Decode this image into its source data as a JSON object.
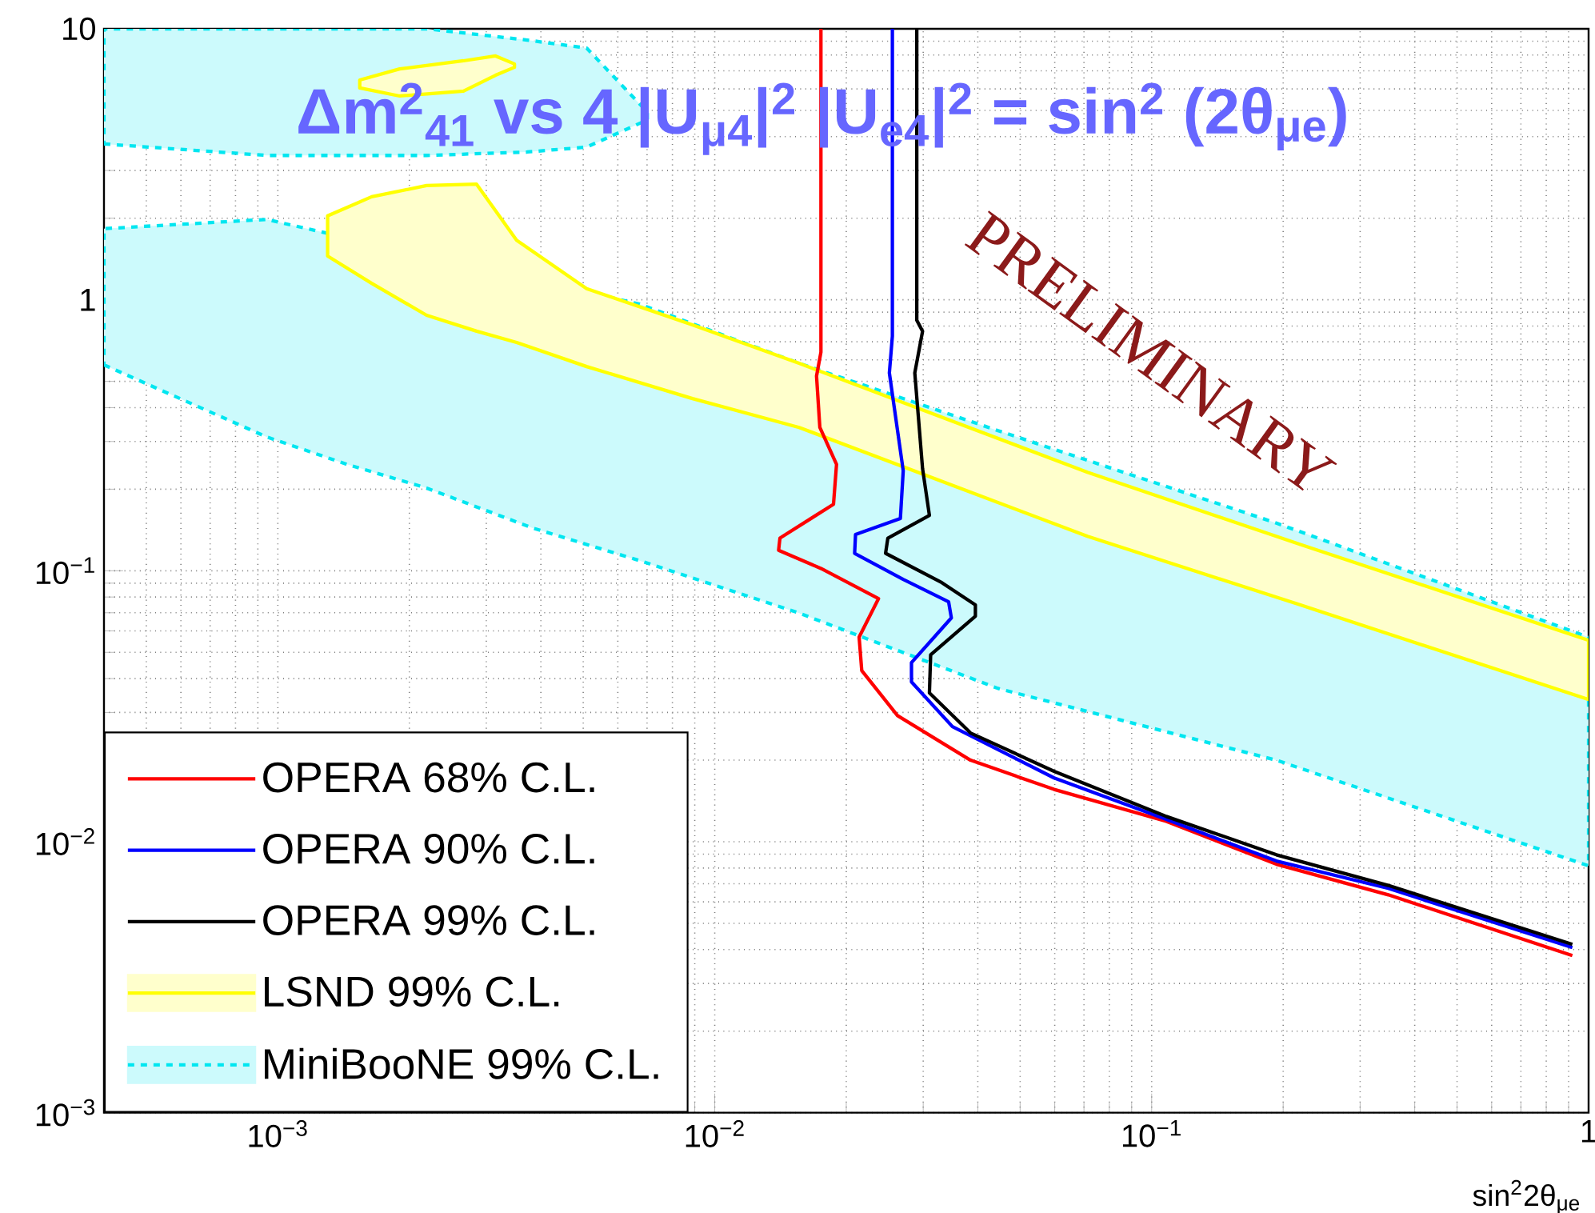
{
  "chart_data": {
    "type": "line",
    "title": "Δm$^{2}$$_{41}$ vs  4 |U$_{μ4}$|$^{2}$ |U$_{e4}$|$^{2}$ = sin$^{2}$ (2θ$_{μe}$)",
    "xlabel": "sin$^{2}$2θ$_{μe}$",
    "annotations": [
      "PRELIMINARY"
    ],
    "log": "xy",
    "grid": true,
    "legend": "bottom left",
    "xlim": [
      0.0004,
      1
    ],
    "ylim": [
      0.001,
      10
    ],
    "xticks": [
      {
        "value": 0.001,
        "label": "10$^{−3}$"
      },
      {
        "value": 0.01,
        "label": "10$^{−2}$"
      },
      {
        "value": 0.1,
        "label": "10$^{−1}$"
      },
      1
    ],
    "yticks": [
      {
        "value": 0.001,
        "label": "10$^{−3}$"
      },
      {
        "value": 0.01,
        "label": "10$^{−2}$"
      },
      {
        "value": 0.1,
        "label": "10$^{−1}$"
      },
      1,
      10
    ],
    "series": [
      {
        "name": "OPERA 68% C.L.",
        "color": "#ff0000",
        "x": [
          0.0175,
          0.0175,
          0.0171,
          0.0174,
          0.019,
          0.0187,
          0.0141,
          0.014,
          0.0175,
          0.0237,
          0.0214,
          0.0217,
          0.0262,
          0.0385,
          0.0598,
          0.108,
          0.193,
          0.348,
          0.918
        ],
        "values": [
          10,
          0.641,
          0.523,
          0.338,
          0.247,
          0.176,
          0.132,
          0.119,
          0.102,
          0.0789,
          0.0569,
          0.0428,
          0.0292,
          0.02,
          0.0156,
          0.0119,
          0.00826,
          0.00637,
          0.0038
        ]
      },
      {
        "name": "OPERA 90% C.L.",
        "color": "#0000ff",
        "x": [
          0.0255,
          0.0255,
          0.0251,
          0.027,
          0.0266,
          0.021,
          0.0209,
          0.027,
          0.0343,
          0.0348,
          0.0282,
          0.0282,
          0.035,
          0.0598,
          0.108,
          0.193,
          0.348,
          0.918
        ],
        "values": [
          10,
          0.734,
          0.537,
          0.234,
          0.156,
          0.136,
          0.116,
          0.0929,
          0.0768,
          0.067,
          0.0458,
          0.0389,
          0.0266,
          0.0172,
          0.0121,
          0.00849,
          0.00673,
          0.00407
        ]
      },
      {
        "name": "OPERA 99% C.L.",
        "color": "#000000",
        "x": [
          0.029,
          0.029,
          0.0299,
          0.0287,
          0.0299,
          0.031,
          0.0249,
          0.0246,
          0.0331,
          0.0395,
          0.0395,
          0.0312,
          0.031,
          0.0385,
          0.0598,
          0.108,
          0.193,
          0.348,
          0.918
        ],
        "values": [
          10,
          0.841,
          0.766,
          0.537,
          0.238,
          0.16,
          0.132,
          0.116,
          0.0904,
          0.0748,
          0.068,
          0.049,
          0.0354,
          0.0252,
          0.0182,
          0.0124,
          0.00895,
          0.0069,
          0.00418
        ]
      },
      {
        "name": "LSND 99% C.L.",
        "type": "area",
        "color": "#ffffcc",
        "x": [
          0.0013,
          0.00164,
          0.00219,
          0.00285,
          0.00352,
          0.00509,
          0.00889,
          0.0156,
          0.0713,
          0.219,
          1,
          1,
          0.219,
          0.0713,
          0.0156,
          0.00889,
          0.00509,
          0.00352,
          0.00285,
          0.00219,
          0.00164,
          0.0013
        ],
        "values": [
          1.45,
          1.15,
          0.877,
          0.766,
          0.696,
          0.567,
          0.432,
          0.338,
          0.134,
          0.0748,
          0.0335,
          0.0554,
          0.125,
          0.231,
          0.583,
          0.808,
          1.1,
          1.66,
          2.67,
          2.64,
          2.4,
          2.04
        ]
      },
      {
        "type": "area",
        "color": "#ffffcc",
        "x": [
          0.00154,
          0.0019,
          0.00266,
          0.00315,
          0.00348,
          0.00348,
          0.00315,
          0.00266,
          0.0019,
          0.00154
        ],
        "values": [
          6.05,
          5.65,
          5.89,
          6.74,
          7.21,
          7.42,
          7.94,
          7.62,
          7.11,
          6.47
        ]
      },
      {
        "name": "MiniBooNE 99% C.L.",
        "type": "area",
        "color": "#ccfafc",
        "line_style": "dashed",
        "x": [
          0.0004,
          0.000942,
          0.00144,
          0.00219,
          0.00382,
          0.00673,
          0.0156,
          0.0445,
          0.193,
          1,
          1,
          0.193,
          0.0445,
          0.0156,
          0.00673,
          0.00382,
          0.00219,
          0.00144,
          0.000942,
          0.0004
        ],
        "values": [
          0.575,
          0.312,
          0.247,
          0.202,
          0.144,
          0.109,
          0.0698,
          0.0368,
          0.02,
          0.00815,
          0.0569,
          0.15,
          0.329,
          0.583,
          0.964,
          null,
          null,
          null,
          1.98,
          1.83
        ]
      },
      {
        "type": "area",
        "color": "#ccfafc",
        "line_style": "dashed",
        "x": [
          0.0004,
          0.000942,
          0.00219,
          0.00372,
          0.00509,
          0.00701,
          0.00701,
          0.00509,
          0.00372,
          0.00219,
          0.000942,
          0.0004
        ],
        "values": [
          3.76,
          3.41,
          3.41,
          3.51,
          3.66,
          4.61,
          4.93,
          8.49,
          9.09,
          10,
          null,
          10
        ]
      }
    ]
  }
}
